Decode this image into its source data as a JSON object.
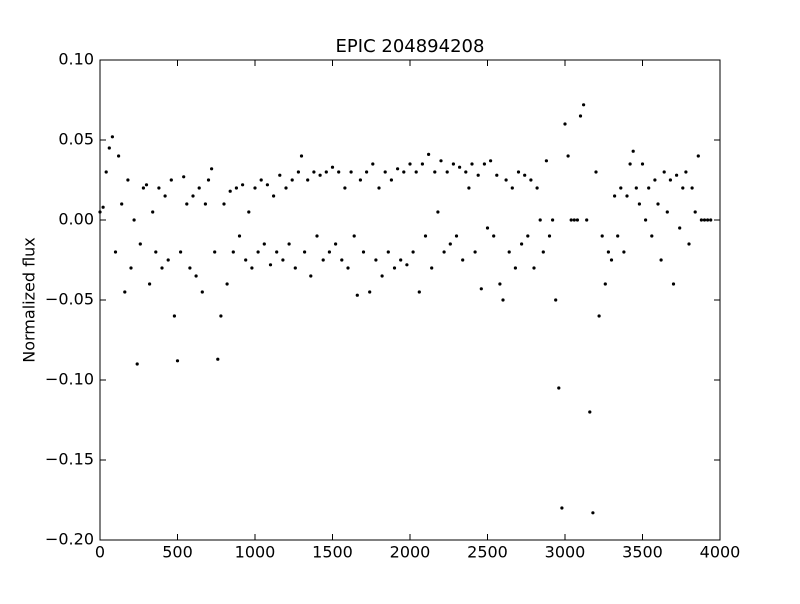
{
  "chart_data": {
    "type": "scatter",
    "title": "EPIC 204894208",
    "y_label": "Normalized flux",
    "color": "#000000",
    "xlim": [
      0,
      4000
    ],
    "xticks": [
      0,
      500,
      1000,
      1500,
      2000,
      2500,
      3000,
      3500,
      4000
    ],
    "ylim": [
      -0.2,
      0.1
    ],
    "yticks": [
      {
        "value": 0.1,
        "label": "0.10"
      },
      {
        "value": 0.05,
        "label": "0.05"
      },
      {
        "value": 0,
        "label": "0.00"
      },
      {
        "value": -0.05,
        "label": "−0.05"
      },
      {
        "value": -0.1,
        "label": "−0.10"
      },
      {
        "value": -0.15,
        "label": "−0.15"
      },
      {
        "value": -0.2,
        "label": "−0.20"
      }
    ],
    "x": [
      0,
      20,
      40,
      60,
      80,
      100,
      120,
      140,
      160,
      180,
      200,
      220,
      240,
      260,
      280,
      300,
      320,
      340,
      360,
      380,
      400,
      420,
      440,
      460,
      480,
      500,
      520,
      540,
      560,
      580,
      600,
      620,
      640,
      660,
      680,
      700,
      720,
      740,
      760,
      780,
      800,
      820,
      840,
      860,
      880,
      900,
      920,
      940,
      960,
      980,
      1000,
      1020,
      1040,
      1060,
      1080,
      1100,
      1120,
      1140,
      1160,
      1180,
      1200,
      1220,
      1240,
      1260,
      1280,
      1300,
      1320,
      1340,
      1360,
      1380,
      1400,
      1420,
      1440,
      1460,
      1480,
      1500,
      1520,
      1540,
      1560,
      1580,
      1600,
      1620,
      1640,
      1660,
      1680,
      1700,
      1720,
      1740,
      1760,
      1780,
      1800,
      1820,
      1840,
      1860,
      1880,
      1900,
      1920,
      1940,
      1960,
      1980,
      2000,
      2020,
      2040,
      2060,
      2080,
      2100,
      2120,
      2140,
      2160,
      2180,
      2200,
      2220,
      2240,
      2260,
      2280,
      2300,
      2320,
      2340,
      2360,
      2380,
      2400,
      2420,
      2440,
      2460,
      2480,
      2500,
      2520,
      2540,
      2560,
      2580,
      2600,
      2620,
      2640,
      2660,
      2680,
      2700,
      2720,
      2740,
      2760,
      2780,
      2800,
      2820,
      2840,
      2860,
      2880,
      2900,
      2920,
      2940,
      2960,
      2980,
      3000,
      3020,
      3040,
      3060,
      3080,
      3100,
      3120,
      3140,
      3160,
      3180,
      3200,
      3220,
      3240,
      3260,
      3280,
      3300,
      3320,
      3340,
      3360,
      3380,
      3400,
      3420,
      3440,
      3460,
      3480,
      3500,
      3520,
      3540,
      3560,
      3580,
      3600,
      3620,
      3640,
      3660,
      3680,
      3700,
      3720,
      3740,
      3760,
      3780,
      3800,
      3820,
      3840,
      3860,
      3880,
      3900,
      3920,
      3940
    ],
    "values": [
      0.005,
      0.008,
      0.03,
      0.045,
      0.052,
      -0.02,
      0.04,
      0.01,
      -0.045,
      0.025,
      -0.03,
      0,
      -0.09,
      -0.015,
      0.02,
      0.022,
      -0.04,
      0.005,
      -0.02,
      0.02,
      -0.03,
      0.015,
      -0.025,
      0.025,
      -0.06,
      -0.088,
      -0.02,
      0.027,
      0.01,
      -0.03,
      0.015,
      -0.035,
      0.02,
      -0.045,
      0.01,
      0.025,
      0.032,
      -0.02,
      -0.087,
      -0.06,
      0.01,
      -0.04,
      0.018,
      -0.02,
      0.02,
      -0.01,
      0.022,
      -0.025,
      0.005,
      -0.03,
      0.02,
      -0.02,
      0.025,
      -0.015,
      0.022,
      -0.028,
      0.015,
      -0.02,
      0.028,
      -0.025,
      0.02,
      -0.015,
      0.025,
      -0.03,
      0.03,
      0.04,
      -0.02,
      0.025,
      -0.035,
      0.03,
      -0.01,
      0.028,
      -0.025,
      0.03,
      -0.02,
      0.033,
      -0.015,
      0.03,
      -0.025,
      0.02,
      -0.03,
      0.03,
      -0.01,
      -0.047,
      0.025,
      -0.02,
      0.03,
      -0.045,
      0.035,
      -0.025,
      0.02,
      -0.035,
      0.03,
      -0.02,
      0.025,
      -0.03,
      0.032,
      -0.025,
      0.03,
      -0.028,
      0.035,
      -0.02,
      0.03,
      -0.045,
      0.035,
      -0.01,
      0.041,
      -0.03,
      0.03,
      0.005,
      0.037,
      -0.02,
      0.03,
      -0.015,
      0.035,
      -0.01,
      0.033,
      -0.025,
      0.03,
      0.02,
      0.035,
      -0.02,
      0.028,
      -0.043,
      0.035,
      -0.005,
      0.037,
      -0.01,
      0.028,
      -0.04,
      -0.05,
      0.025,
      -0.02,
      0.02,
      -0.03,
      0.03,
      -0.015,
      0.028,
      -0.01,
      0.025,
      -0.03,
      0.02,
      0,
      -0.02,
      0.037,
      -0.01,
      0,
      -0.05,
      -0.105,
      -0.18,
      0.06,
      0.04,
      0,
      0,
      0,
      0.065,
      0.072,
      0,
      -0.12,
      -0.183,
      0.03,
      -0.06,
      -0.01,
      -0.04,
      -0.02,
      -0.025,
      0.015,
      -0.01,
      0.02,
      -0.02,
      0.015,
      0.035,
      0.043,
      0.02,
      0.01,
      0.035,
      0,
      0.02,
      -0.01,
      0.025,
      0.01,
      -0.025,
      0.03,
      0.005,
      0.025,
      -0.04,
      0.028,
      -0.005,
      0.02,
      0.03,
      -0.015,
      0.02,
      0.005,
      0.04,
      0,
      0,
      0,
      0
    ]
  }
}
